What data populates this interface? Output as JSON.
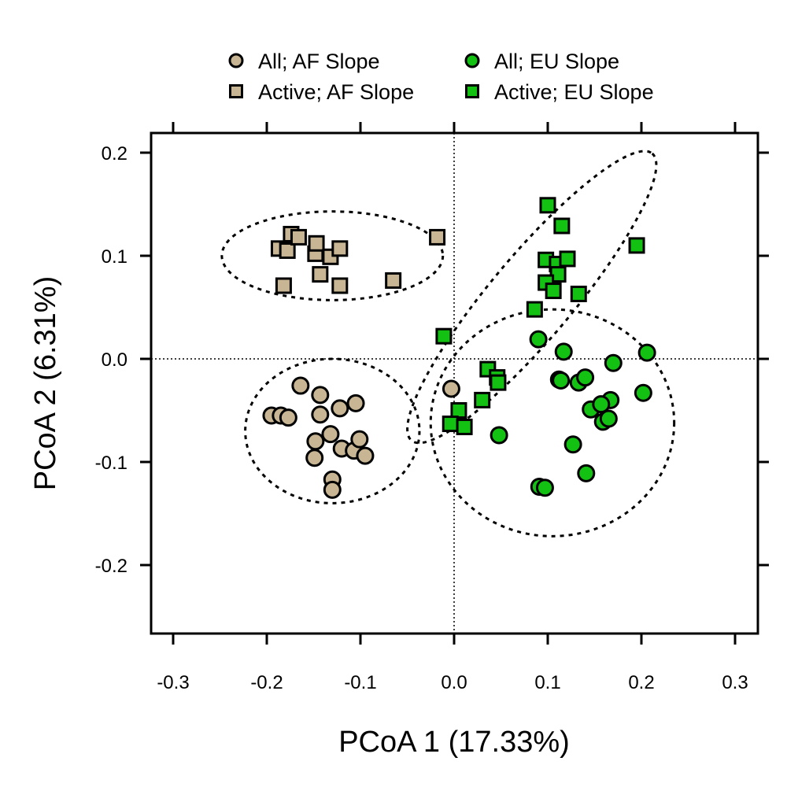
{
  "chart_data": {
    "type": "scatter",
    "title": "",
    "xlabel": "PCoA 1 (17.33%)",
    "ylabel": "PCoA 2 (6.31%)",
    "xlim": [
      -0.325,
      0.325
    ],
    "ylim": [
      -0.265,
      0.22
    ],
    "xticks": [
      -0.3,
      -0.2,
      -0.1,
      0.0,
      0.1,
      0.2,
      0.3
    ],
    "xtick_labels": [
      "-0.3",
      "-0.2",
      "-0.1",
      "0.0",
      "0.1",
      "0.2",
      "0.3"
    ],
    "yticks": [
      -0.2,
      -0.1,
      0.0,
      0.1,
      0.2
    ],
    "ytick_labels": [
      "-0.2",
      "-0.1",
      "0.0",
      "0.1",
      "0.2"
    ],
    "reference_lines": {
      "x": 0,
      "y": 0,
      "style": "dotted"
    },
    "grid": false,
    "legend_position": "top",
    "series": [
      {
        "name": "All; AF Slope",
        "marker": "circle",
        "color": "#c8b594",
        "points": [
          [
            -0.195,
            -0.055
          ],
          [
            -0.185,
            -0.055
          ],
          [
            -0.177,
            -0.057
          ],
          [
            -0.164,
            -0.026
          ],
          [
            -0.143,
            -0.035
          ],
          [
            -0.143,
            -0.054
          ],
          [
            -0.148,
            -0.08
          ],
          [
            -0.149,
            -0.096
          ],
          [
            -0.132,
            -0.073
          ],
          [
            -0.122,
            -0.048
          ],
          [
            -0.105,
            -0.043
          ],
          [
            -0.12,
            -0.087
          ],
          [
            -0.107,
            -0.089
          ],
          [
            -0.101,
            -0.078
          ],
          [
            -0.095,
            -0.094
          ],
          [
            -0.13,
            -0.117
          ],
          [
            -0.13,
            -0.127
          ],
          [
            -0.003,
            -0.029
          ]
        ]
      },
      {
        "name": "Active; AF Slope",
        "marker": "square",
        "color": "#c8b594",
        "points": [
          [
            -0.187,
            0.107
          ],
          [
            -0.174,
            0.121
          ],
          [
            -0.178,
            0.105
          ],
          [
            -0.166,
            0.118
          ],
          [
            -0.148,
            0.102
          ],
          [
            -0.147,
            0.112
          ],
          [
            -0.132,
            0.099
          ],
          [
            -0.122,
            0.107
          ],
          [
            -0.143,
            0.082
          ],
          [
            -0.182,
            0.071
          ],
          [
            -0.122,
            0.071
          ],
          [
            -0.065,
            0.076
          ],
          [
            -0.018,
            0.118
          ]
        ]
      },
      {
        "name": "All; EU Slope",
        "marker": "circle",
        "color": "#13c113",
        "points": [
          [
            0.09,
            0.019
          ],
          [
            0.117,
            0.007
          ],
          [
            0.206,
            0.006
          ],
          [
            0.17,
            -0.004
          ],
          [
            0.112,
            -0.02
          ],
          [
            0.114,
            -0.021
          ],
          [
            0.133,
            -0.023
          ],
          [
            0.14,
            -0.018
          ],
          [
            0.202,
            -0.033
          ],
          [
            0.167,
            -0.04
          ],
          [
            0.146,
            -0.049
          ],
          [
            0.157,
            -0.044
          ],
          [
            0.159,
            -0.061
          ],
          [
            0.165,
            -0.058
          ],
          [
            0.048,
            -0.074
          ],
          [
            0.127,
            -0.083
          ],
          [
            0.141,
            -0.111
          ],
          [
            0.091,
            -0.124
          ],
          [
            0.097,
            -0.125
          ]
        ]
      },
      {
        "name": "Active; EU Slope",
        "marker": "square",
        "color": "#13c113",
        "points": [
          [
            0.1,
            0.149
          ],
          [
            0.115,
            0.129
          ],
          [
            0.195,
            0.11
          ],
          [
            0.098,
            0.096
          ],
          [
            0.11,
            0.092
          ],
          [
            0.121,
            0.097
          ],
          [
            0.111,
            0.082
          ],
          [
            0.098,
            0.074
          ],
          [
            0.106,
            0.066
          ],
          [
            0.133,
            0.063
          ],
          [
            0.086,
            0.048
          ],
          [
            -0.011,
            0.022
          ],
          [
            0.036,
            -0.01
          ],
          [
            0.046,
            -0.018
          ],
          [
            0.047,
            -0.023
          ],
          [
            0.03,
            -0.04
          ],
          [
            0.005,
            -0.05
          ],
          [
            -0.004,
            -0.063
          ],
          [
            0.011,
            -0.066
          ]
        ]
      }
    ],
    "ellipses": [
      {
        "group": "Active; AF Slope",
        "center": [
          -0.13,
          0.1
        ],
        "rx": 0.118,
        "ry": 0.043,
        "angle_deg": 0
      },
      {
        "group": "All; AF Slope",
        "center": [
          -0.13,
          -0.07
        ],
        "rx": 0.093,
        "ry": 0.07,
        "angle_deg": 0
      },
      {
        "group": "All; EU Slope",
        "center": [
          0.105,
          -0.062
        ],
        "rx": 0.13,
        "ry": 0.11,
        "angle_deg": 0
      },
      {
        "group": "Active; EU Slope",
        "center": [
          0.083,
          0.06
        ],
        "rx": 0.2,
        "ry": 0.04,
        "angle_deg": 50
      }
    ]
  }
}
